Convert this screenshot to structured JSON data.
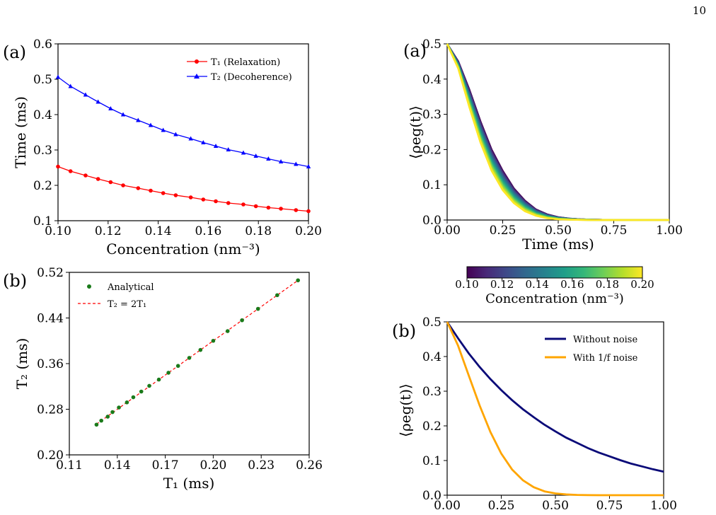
{
  "page_number": "10",
  "colorbar": {
    "label": "Concentration (nm⁻³)",
    "ticks": [
      "0.10",
      "0.12",
      "0.14",
      "0.16",
      "0.18",
      "0.20"
    ],
    "colors": [
      "#440154",
      "#482878",
      "#3e4989",
      "#31688e",
      "#26828e",
      "#1f9e89",
      "#35b779",
      "#6ece58",
      "#b5de2b",
      "#fde725"
    ]
  },
  "chart_data": [
    {
      "id": "time-vs-concentration",
      "panel_label": "(a)",
      "type": "line",
      "xlabel": "Concentration (nm⁻³)",
      "ylabel": "Time (ms)",
      "xlim": [
        0.1,
        0.2
      ],
      "ylim": [
        0.1,
        0.6
      ],
      "xticks": [
        "0.10",
        "0.12",
        "0.14",
        "0.16",
        "0.18",
        "0.20"
      ],
      "yticks": [
        "0.1",
        "0.2",
        "0.3",
        "0.4",
        "0.5",
        "0.6"
      ],
      "legend_position": "top-right",
      "x": [
        0.1,
        0.105,
        0.111,
        0.116,
        0.121,
        0.126,
        0.132,
        0.137,
        0.142,
        0.147,
        0.153,
        0.158,
        0.163,
        0.168,
        0.174,
        0.179,
        0.184,
        0.189,
        0.195,
        0.2
      ],
      "series": [
        {
          "name": "T₁ (Relaxation)",
          "color": "#ff0000",
          "marker": "circle",
          "values": [
            0.253,
            0.24,
            0.228,
            0.218,
            0.209,
            0.2,
            0.192,
            0.185,
            0.178,
            0.172,
            0.166,
            0.16,
            0.155,
            0.15,
            0.146,
            0.141,
            0.137,
            0.134,
            0.13,
            0.127
          ]
        },
        {
          "name": "T₂ (Decoherence)",
          "color": "#0000ff",
          "marker": "triangle",
          "values": [
            0.506,
            0.48,
            0.456,
            0.436,
            0.417,
            0.4,
            0.384,
            0.37,
            0.356,
            0.344,
            0.332,
            0.321,
            0.311,
            0.301,
            0.292,
            0.283,
            0.275,
            0.267,
            0.26,
            0.253
          ]
        }
      ]
    },
    {
      "id": "t2-vs-t1",
      "panel_label": "(b)",
      "type": "scatter",
      "xlabel": "T₁ (ms)",
      "ylabel": "T₂ (ms)",
      "xlim": [
        0.11,
        0.26
      ],
      "ylim": [
        0.2,
        0.52
      ],
      "xticks": [
        "0.11",
        "0.14",
        "0.17",
        "0.20",
        "0.23",
        "0.26"
      ],
      "yticks": [
        "0.20",
        "0.28",
        "0.36",
        "0.44",
        "0.52"
      ],
      "legend_position": "top-left",
      "series": [
        {
          "name": "Analytical",
          "color": "#1a7a1a",
          "marker": "circle",
          "x": [
            0.127,
            0.13,
            0.134,
            0.137,
            0.141,
            0.146,
            0.15,
            0.155,
            0.16,
            0.166,
            0.172,
            0.178,
            0.185,
            0.192,
            0.2,
            0.209,
            0.218,
            0.228,
            0.24,
            0.253
          ],
          "y": [
            0.253,
            0.26,
            0.267,
            0.275,
            0.283,
            0.292,
            0.301,
            0.311,
            0.321,
            0.332,
            0.344,
            0.356,
            0.37,
            0.384,
            0.4,
            0.417,
            0.436,
            0.456,
            0.48,
            0.506
          ]
        },
        {
          "name": "T₂ = 2T₁",
          "color": "#ff0000",
          "style": "dashed",
          "x": [
            0.127,
            0.253
          ],
          "y": [
            0.254,
            0.506
          ]
        }
      ]
    },
    {
      "id": "coherence-vs-concentration",
      "panel_label": "(a)",
      "type": "line",
      "xlabel": "Time (ms)",
      "ylabel": "⟨ρeg(t)⟩",
      "xlim": [
        0.0,
        1.0
      ],
      "ylim": [
        0.0,
        0.5
      ],
      "xticks": [
        "0.00",
        "0.25",
        "0.50",
        "0.75",
        "1.00"
      ],
      "yticks": [
        "0.0",
        "0.1",
        "0.2",
        "0.3",
        "0.4",
        "0.5"
      ],
      "series_note": "one curve per concentration 0.10 to 0.20 nm⁻³ colored by colorbar",
      "concentrations": [
        0.1,
        0.105,
        0.111,
        0.116,
        0.121,
        0.126,
        0.132,
        0.137,
        0.142,
        0.147,
        0.153,
        0.158,
        0.163,
        0.168,
        0.174,
        0.179,
        0.184,
        0.189,
        0.195,
        0.2
      ],
      "x": [
        0,
        0.05,
        0.1,
        0.15,
        0.2,
        0.25,
        0.3,
        0.35,
        0.4,
        0.45,
        0.5,
        0.55,
        0.6,
        0.65,
        0.7,
        0.75,
        0.8,
        0.9,
        1.0
      ],
      "curve_envelope": {
        "lowest_concentration": [
          0.5,
          0.45,
          0.37,
          0.28,
          0.2,
          0.14,
          0.09,
          0.055,
          0.03,
          0.016,
          0.008,
          0.004,
          0.002,
          0.001,
          0.0005,
          0.0002,
          0.0001,
          0,
          0
        ],
        "highest_concentration": [
          0.5,
          0.43,
          0.32,
          0.22,
          0.14,
          0.085,
          0.048,
          0.025,
          0.012,
          0.005,
          0.002,
          0.001,
          0.0004,
          0.0001,
          0,
          0,
          0,
          0,
          0
        ]
      }
    },
    {
      "id": "coherence-noise",
      "panel_label": "(b)",
      "type": "line",
      "xlabel": "",
      "ylabel": "⟨ρeg(t)⟩",
      "xlim": [
        0.0,
        1.0
      ],
      "ylim": [
        0.0,
        0.5
      ],
      "xticks": [
        "0.00",
        "0.25",
        "0.50",
        "0.75",
        "1.00"
      ],
      "yticks": [
        "0.0",
        "0.1",
        "0.2",
        "0.3",
        "0.4",
        "0.5"
      ],
      "legend_position": "top-right",
      "x": [
        0,
        0.05,
        0.1,
        0.15,
        0.2,
        0.25,
        0.3,
        0.35,
        0.4,
        0.45,
        0.5,
        0.55,
        0.6,
        0.65,
        0.7,
        0.75,
        0.8,
        0.85,
        0.9,
        0.95,
        1.0
      ],
      "series": [
        {
          "name": "Without noise",
          "color": "#0a0a78",
          "values": [
            0.5,
            0.453,
            0.409,
            0.37,
            0.335,
            0.303,
            0.274,
            0.248,
            0.225,
            0.203,
            0.184,
            0.166,
            0.151,
            0.136,
            0.123,
            0.112,
            0.101,
            0.091,
            0.083,
            0.075,
            0.068
          ]
        },
        {
          "name": "With 1/f noise",
          "color": "#ffa500",
          "values": [
            0.5,
            0.432,
            0.345,
            0.259,
            0.182,
            0.12,
            0.074,
            0.043,
            0.023,
            0.011,
            0.005,
            0.0022,
            0.0009,
            0.0003,
            0.0001,
            0,
            0,
            0,
            0,
            0,
            0
          ]
        }
      ]
    }
  ]
}
